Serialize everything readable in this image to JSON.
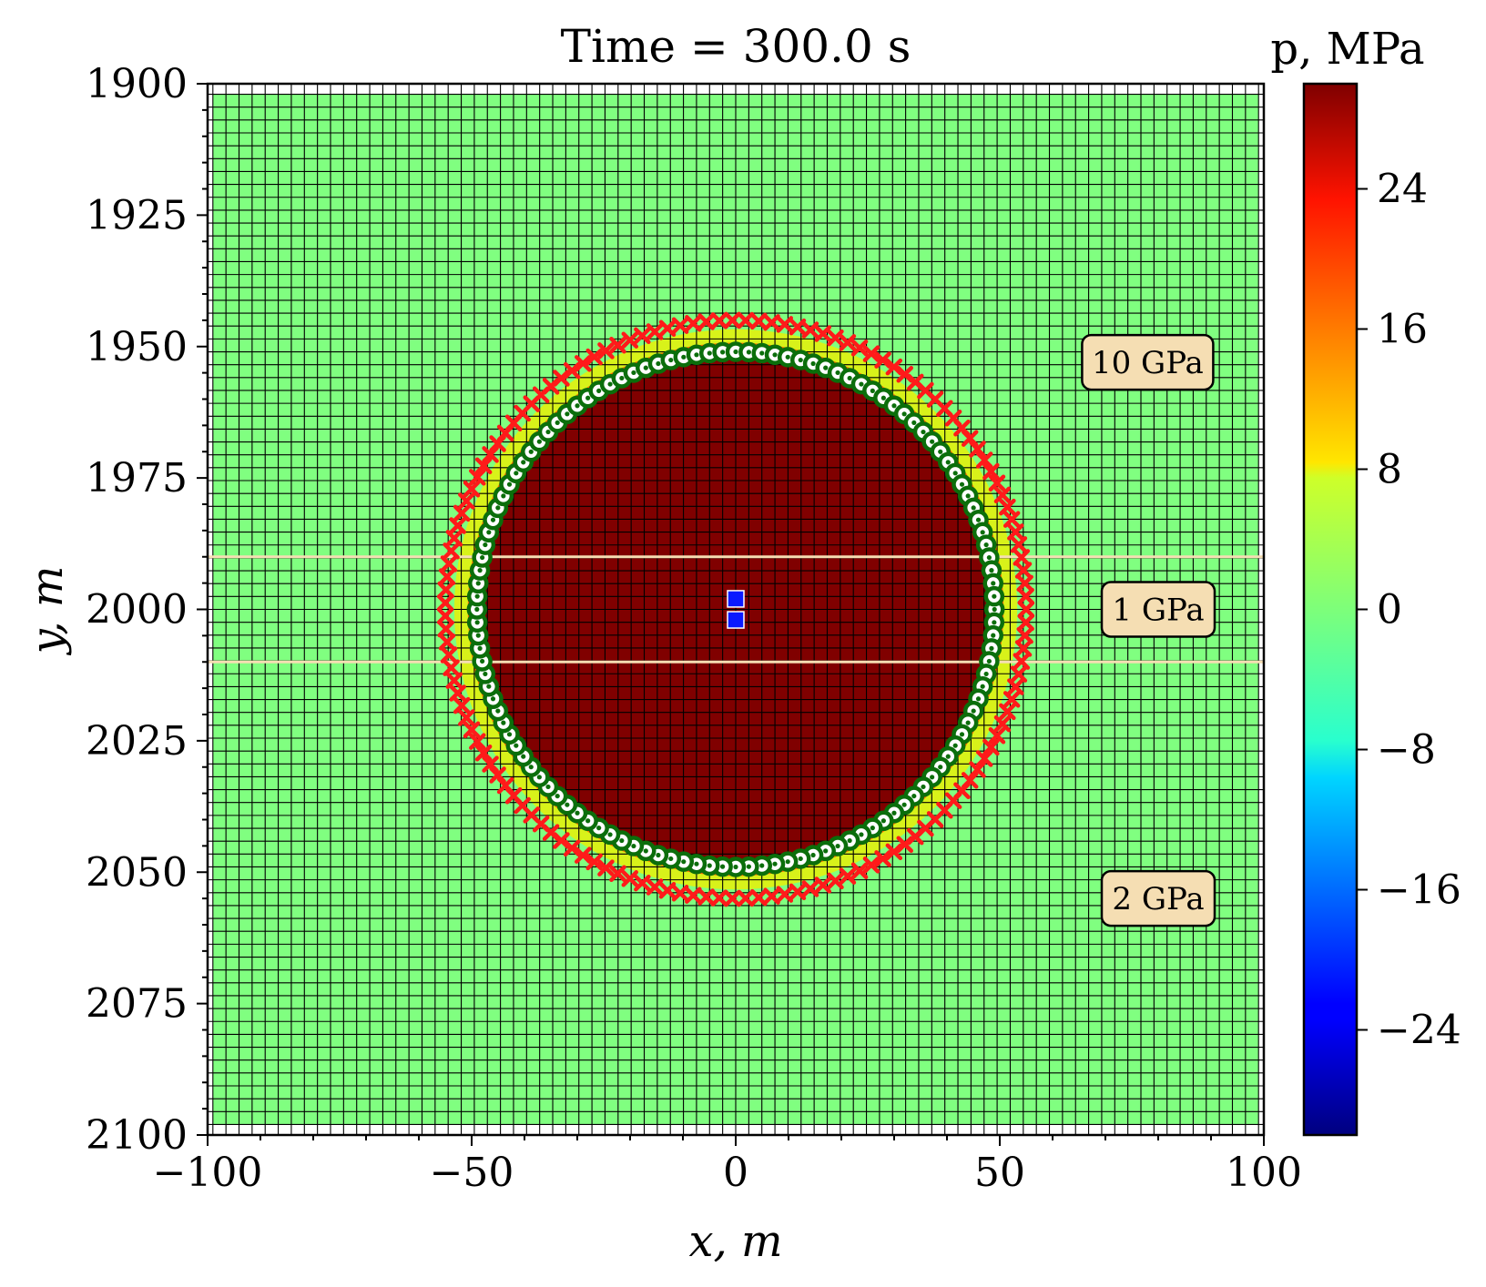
{
  "chart_data": {
    "type": "heatmap",
    "title": "Time = 300.0 s",
    "xlabel": "x, m",
    "ylabel": "y, m",
    "xlim": [
      -100,
      100
    ],
    "ylim": [
      2100,
      1900
    ],
    "y_inverted": true,
    "x_ticks": [
      -100,
      -50,
      0,
      50,
      100
    ],
    "x_tick_labels": [
      "−100",
      "−50",
      "0",
      "50",
      "100"
    ],
    "y_ticks": [
      1900,
      1925,
      1950,
      1975,
      2000,
      2025,
      2050,
      2075,
      2100
    ],
    "y_tick_labels": [
      "1900",
      "1925",
      "1950",
      "1975",
      "2000",
      "2025",
      "2050",
      "2075",
      "2100"
    ],
    "grid": {
      "x_range": [
        -99,
        99
      ],
      "y_range": [
        1902,
        2098
      ],
      "x_cells": 80,
      "y_cells": 80
    },
    "background_value": 0,
    "pressurized_region": {
      "shape": "circle",
      "center": [
        0,
        2000
      ],
      "radius": 51,
      "value": 30,
      "rim_value": 6
    },
    "layer_boundaries_y": [
      1990,
      2010
    ],
    "layer_boundary_color": "#f5deb3",
    "annotations": [
      {
        "text": "10 GPa",
        "x": 78,
        "y": 1953
      },
      {
        "text": "1 GPa",
        "x": 80,
        "y": 2000
      },
      {
        "text": "2 GPa",
        "x": 80,
        "y": 2055
      }
    ],
    "injection_points": [
      {
        "x": 0,
        "y": 1998
      },
      {
        "x": 0,
        "y": 2002
      }
    ],
    "ring_markers": {
      "outer": {
        "type": "x",
        "color": "#ff1a1a",
        "radius": 55
      },
      "inner": {
        "type": "o",
        "color": "#0b6e0b",
        "radius": 49
      }
    },
    "colorbar": {
      "label": "p, MPa",
      "min": -30,
      "max": 30,
      "ticks": [
        24,
        16,
        8,
        0,
        -8,
        -16,
        -24
      ],
      "tick_labels": [
        "24",
        "16",
        "8",
        "0",
        "−8",
        "−16",
        "−24"
      ],
      "colormap": "jet"
    }
  }
}
